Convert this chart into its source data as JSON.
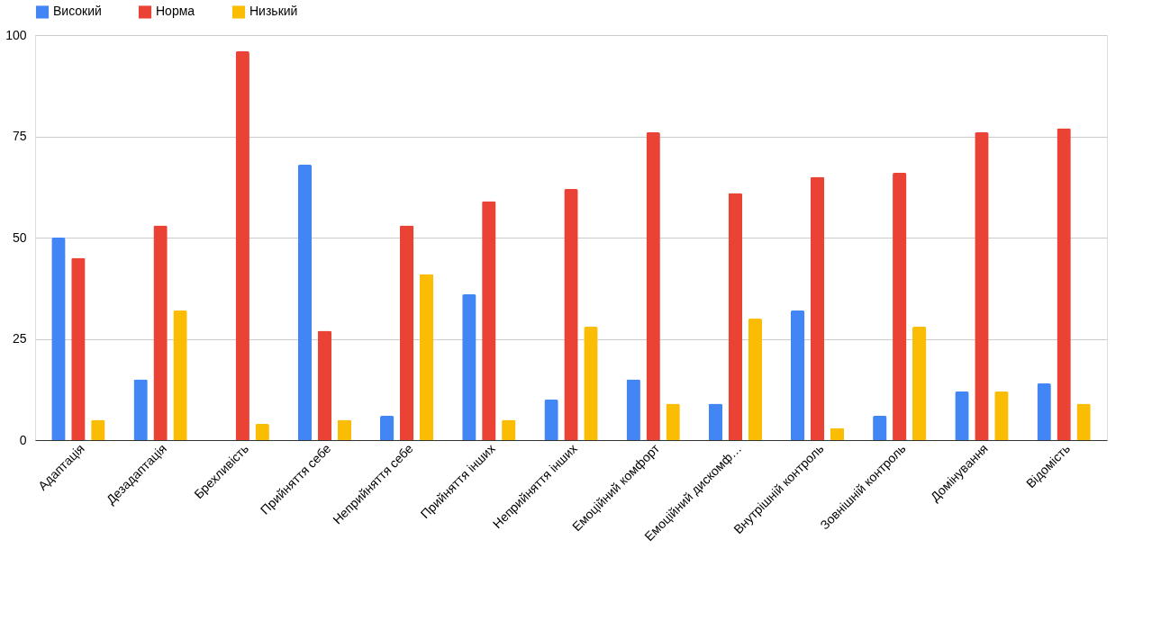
{
  "chart_data": {
    "type": "bar",
    "categories": [
      "Адаптація",
      "Дезадаптація",
      "Брехливість",
      "Прийняття себе",
      "Неприйняття себе",
      "Прийняття інших",
      "Неприйняття інших",
      "Емоційний комфорт",
      "Емоційний дискомф…",
      "Внутрішній контроль",
      "Зовнішній контроль",
      "Домінування",
      "Відомість"
    ],
    "series": [
      {
        "name": "Високий",
        "color": "#4285f4",
        "values": [
          50,
          15,
          0,
          68,
          6,
          36,
          10,
          15,
          9,
          32,
          6,
          12,
          14
        ]
      },
      {
        "name": "Норма",
        "color": "#ea4335",
        "values": [
          45,
          53,
          96,
          27,
          53,
          59,
          62,
          76,
          61,
          65,
          66,
          76,
          77
        ]
      },
      {
        "name": "Низький",
        "color": "#fbbc04",
        "values": [
          5,
          32,
          4,
          5,
          41,
          5,
          28,
          9,
          30,
          3,
          28,
          12,
          9
        ]
      }
    ],
    "ylim": [
      0,
      100
    ],
    "yticks": [
      0,
      25,
      50,
      75,
      100
    ],
    "grid": "y",
    "legend": "top"
  }
}
